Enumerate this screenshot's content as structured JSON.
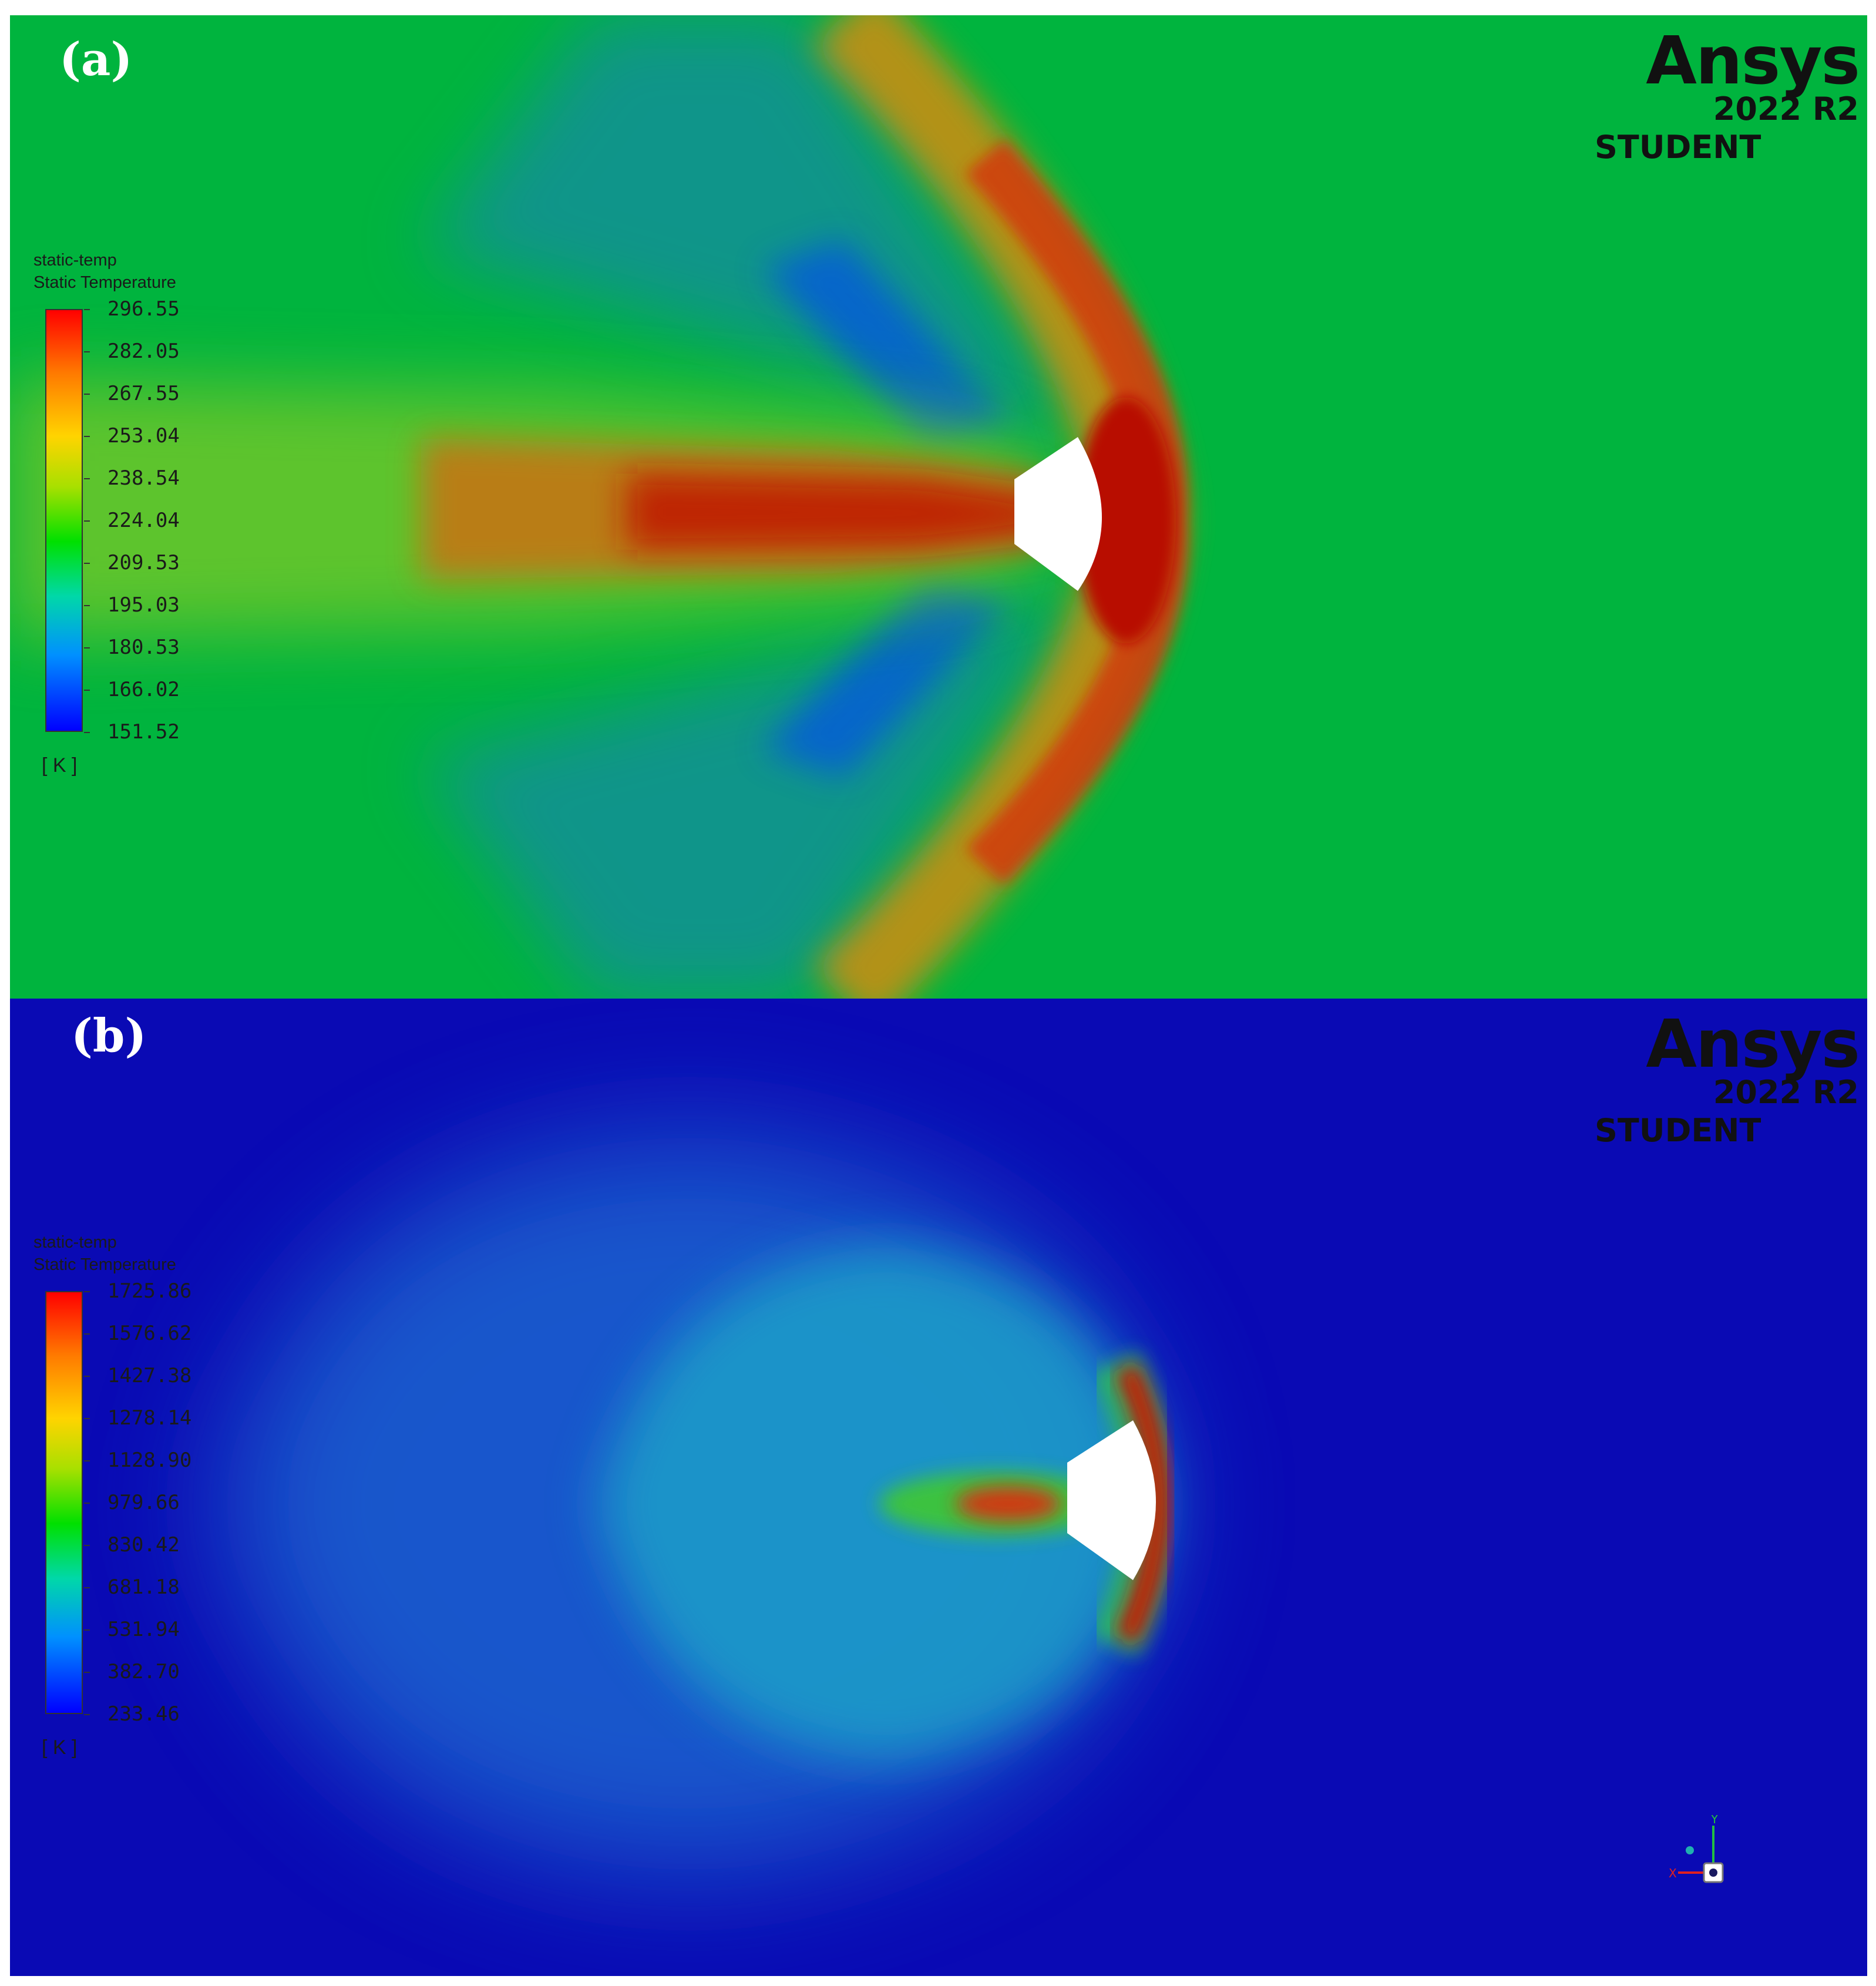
{
  "panels": [
    {
      "label": "(a)",
      "logo": {
        "brand": "Ansys",
        "version": "2022 R2",
        "edition": "STUDENT"
      },
      "legend": {
        "title_line1": "static-temp",
        "title_line2": "Static Temperature",
        "ticks": [
          "296.55",
          "282.05",
          "267.55",
          "253.04",
          "238.54",
          "224.04",
          "209.53",
          "195.03",
          "180.53",
          "166.02",
          "151.52"
        ],
        "unit": "[ K ]"
      },
      "colors": {
        "background": "#00b43e",
        "hot": "#c81400",
        "cold": "#1f5aff",
        "body": "#ffffff"
      }
    },
    {
      "label": "(b)",
      "logo": {
        "brand": "Ansys",
        "version": "2022 R2",
        "edition": "STUDENT"
      },
      "legend": {
        "title_line1": "static-temp",
        "title_line2": "Static Temperature",
        "ticks": [
          "1725.86",
          "1576.62",
          "1427.38",
          "1278.14",
          "1128.90",
          "979.66",
          "830.42",
          "681.18",
          "531.94",
          "382.70",
          "233.46"
        ],
        "unit": "[ K ]"
      },
      "colors": {
        "background": "#0a0ab4",
        "hot": "#c81400",
        "mid": "#30c050",
        "body": "#ffffff"
      },
      "axis_triad": {
        "x_label": "X",
        "y_label": "Y",
        "icon": "axis-triad-icon"
      }
    }
  ]
}
